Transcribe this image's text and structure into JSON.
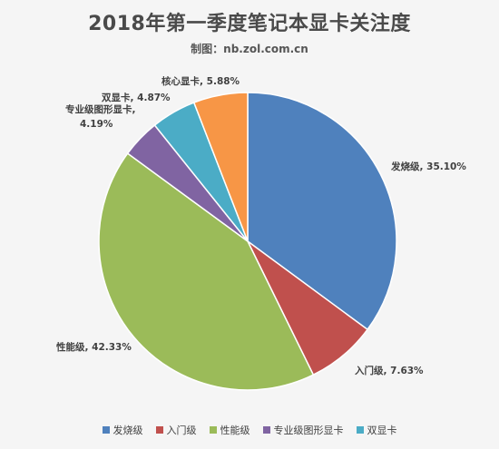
{
  "title": "2018年第一季度笔记本显卡关注度",
  "subtitle": "制图：nb.zol.com.cn",
  "chart_data": {
    "type": "pie",
    "start_angle_deg": 0,
    "direction": "clockwise",
    "slices": [
      {
        "name": "发烧级",
        "value": 35.1,
        "label": "发烧级, 35.10%",
        "color": "#4f81bd"
      },
      {
        "name": "入门级",
        "value": 7.63,
        "label": "入门级, 7.63%",
        "color": "#c0504d"
      },
      {
        "name": "性能级",
        "value": 42.33,
        "label": "性能级, 42.33%",
        "color": "#9bbb59"
      },
      {
        "name": "专业级图形显卡",
        "value": 4.19,
        "label_lines": [
          "专业级图形显卡,",
          "4.19%"
        ],
        "color": "#8064a2"
      },
      {
        "name": "双显卡",
        "value": 4.87,
        "label": "双显卡, 4.87%",
        "color": "#4bacc6"
      },
      {
        "name": "核心显卡",
        "value": 5.88,
        "label": "核心显卡, 5.88%",
        "color": "#f79646"
      }
    ],
    "legend": [
      "发烧级",
      "入门级",
      "性能级",
      "专业级图形显卡",
      "双显卡"
    ],
    "legend_position": "bottom"
  }
}
